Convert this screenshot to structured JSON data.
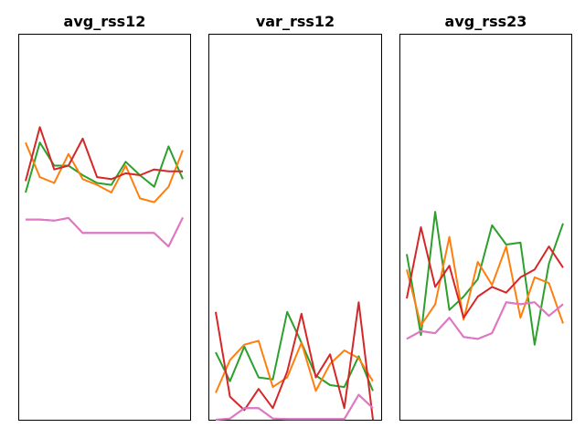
{
  "chart_data": [
    {
      "type": "line",
      "title": "avg_rss12",
      "x": [
        0,
        1,
        2,
        3,
        4,
        5,
        6,
        7,
        8,
        9,
        10,
        11
      ],
      "ylim": [
        0,
        100
      ],
      "grid": false,
      "series": [
        {
          "color": "#2ca02c",
          "values": [
            59,
            72,
            66,
            66,
            63.5,
            61.5,
            61,
            67,
            63.5,
            60.5,
            71,
            62.5
          ]
        },
        {
          "color": "#ff7f0e",
          "values": [
            72,
            63,
            61.5,
            69,
            62.5,
            61,
            59,
            66,
            57.5,
            56.5,
            60.5,
            70
          ]
        },
        {
          "color": "#d62728",
          "values": [
            62,
            76,
            65,
            66,
            73,
            63,
            62.5,
            64,
            63.5,
            65,
            64.5,
            64.5
          ]
        },
        {
          "color": "#9467bd",
          "values": [
            52,
            52,
            51.7,
            52.4,
            48.5,
            48.5,
            48.5,
            48.5,
            48.5,
            48.5,
            45,
            52.5
          ]
        },
        {
          "color": "#e377c2",
          "values": [
            52,
            52,
            51.7,
            52.4,
            48.5,
            48.5,
            48.5,
            48.5,
            48.5,
            48.5,
            45,
            52.5
          ]
        }
      ]
    },
    {
      "type": "line",
      "title": "var_rss12",
      "x": [
        0,
        1,
        2,
        3,
        4,
        5,
        6,
        7,
        8,
        9,
        10,
        11
      ],
      "ylim": [
        0,
        100
      ],
      "grid": false,
      "series": [
        {
          "color": "#2ca02c",
          "values": [
            17.5,
            10,
            19,
            11,
            10.5,
            28,
            20,
            11.5,
            9,
            8.5,
            16.5,
            7.5
          ]
        },
        {
          "color": "#ff7f0e",
          "values": [
            7,
            15.5,
            19.5,
            20.5,
            8.5,
            11,
            20,
            7.5,
            14.5,
            18,
            16,
            10
          ]
        },
        {
          "color": "#d62728",
          "values": [
            28,
            6,
            2.5,
            8,
            3,
            12.5,
            27.5,
            11,
            17,
            3,
            30.5,
            0
          ]
        },
        {
          "color": "#9467bd",
          "values": [
            0,
            0.3,
            3,
            3,
            0.3,
            0.2,
            0.2,
            0.2,
            0.2,
            0.2,
            6.5,
            3
          ]
        },
        {
          "color": "#e377c2",
          "values": [
            0,
            0.3,
            3,
            3,
            0.3,
            0.2,
            0.2,
            0.2,
            0.2,
            0.2,
            6.5,
            3
          ]
        }
      ]
    },
    {
      "type": "line",
      "title": "avg_rss23",
      "x": [
        0,
        1,
        2,
        3,
        4,
        5,
        6,
        7,
        8,
        9,
        10,
        11
      ],
      "ylim": [
        0,
        100
      ],
      "grid": false,
      "series": [
        {
          "color": "#2ca02c",
          "values": [
            43,
            22,
            54,
            28.5,
            32,
            36.5,
            50.5,
            45.5,
            46,
            19.5,
            40.5,
            51
          ]
        },
        {
          "color": "#ff7f0e",
          "values": [
            39,
            24.5,
            30,
            47.5,
            26,
            41,
            35,
            45,
            26.5,
            37,
            35.5,
            25
          ]
        },
        {
          "color": "#d62728",
          "values": [
            31.5,
            50,
            34.5,
            40,
            26.5,
            32,
            34.5,
            33,
            37,
            39,
            45,
            39.5
          ]
        },
        {
          "color": "#9467bd",
          "values": [
            21,
            23,
            22.5,
            26.5,
            21.5,
            21,
            22.5,
            30.5,
            30,
            30.5,
            27,
            30
          ]
        },
        {
          "color": "#e377c2",
          "values": [
            21,
            23,
            22.5,
            26.5,
            21.5,
            21,
            22.5,
            30.5,
            30,
            30.5,
            27,
            30
          ]
        }
      ]
    }
  ]
}
